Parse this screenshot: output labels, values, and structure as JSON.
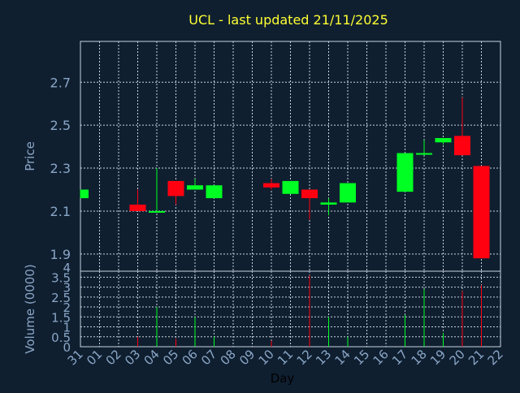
{
  "title": "UCL - last updated 21/11/2025",
  "colors": {
    "background": "#0f1f30",
    "title": "#ffff33",
    "axis_text": "#8aa6c6",
    "grid": "#c9d3de",
    "up": "#00ff22",
    "down": "#ff0011",
    "frame": "#c9d3de"
  },
  "chart_data": [
    {
      "type": "candlestick",
      "ylabel": "Price",
      "ylim": [
        1.82,
        2.89
      ],
      "yticks": [
        "1.9",
        "2.1",
        "2.3",
        "2.5",
        "2.7"
      ],
      "ytick_values": [
        1.9,
        2.1,
        2.3,
        2.5,
        2.7
      ],
      "grid": true,
      "x": [
        "31",
        "01",
        "02",
        "03",
        "04",
        "05",
        "06",
        "07",
        "08",
        "09",
        "10",
        "11",
        "12",
        "13",
        "14",
        "15",
        "16",
        "17",
        "18",
        "19",
        "20",
        "21",
        "22"
      ],
      "candles": [
        {
          "x": "31",
          "open": 2.16,
          "close": 2.2,
          "high": 2.2,
          "low": 2.16
        },
        {
          "x": "03",
          "open": 2.13,
          "close": 2.1,
          "high": 2.2,
          "low": 2.1
        },
        {
          "x": "04",
          "open": 2.1,
          "close": 2.1,
          "high": 2.3,
          "low": 2.1
        },
        {
          "x": "05",
          "open": 2.24,
          "close": 2.17,
          "high": 2.24,
          "low": 2.13
        },
        {
          "x": "06",
          "open": 2.2,
          "close": 2.22,
          "high": 2.25,
          "low": 2.2
        },
        {
          "x": "07",
          "open": 2.16,
          "close": 2.22,
          "high": 2.22,
          "low": 2.16
        },
        {
          "x": "10",
          "open": 2.23,
          "close": 2.21,
          "high": 2.25,
          "low": 2.2
        },
        {
          "x": "11",
          "open": 2.18,
          "close": 2.24,
          "high": 2.24,
          "low": 2.18
        },
        {
          "x": "12",
          "open": 2.2,
          "close": 2.16,
          "high": 2.2,
          "low": 2.06
        },
        {
          "x": "13",
          "open": 2.13,
          "close": 2.14,
          "high": 2.16,
          "low": 2.08
        },
        {
          "x": "14",
          "open": 2.14,
          "close": 2.23,
          "high": 2.23,
          "low": 2.14
        },
        {
          "x": "17",
          "open": 2.19,
          "close": 2.37,
          "high": 2.37,
          "low": 2.19
        },
        {
          "x": "18",
          "open": 2.37,
          "close": 2.37,
          "high": 2.43,
          "low": 2.36
        },
        {
          "x": "19",
          "open": 2.42,
          "close": 2.44,
          "high": 2.44,
          "low": 2.41
        },
        {
          "x": "20",
          "open": 2.45,
          "close": 2.36,
          "high": 2.63,
          "low": 2.36
        },
        {
          "x": "21",
          "open": 2.31,
          "close": 1.88,
          "high": 2.31,
          "low": 1.88
        }
      ]
    },
    {
      "type": "bar",
      "ylabel": "Volume (0000)",
      "xlabel": "Day",
      "ylim": [
        0,
        3.8
      ],
      "yticks": [
        "0",
        "0.5",
        "1",
        "1.5",
        "2",
        "2.5",
        "3",
        "3.5",
        "4"
      ],
      "ytick_values": [
        0,
        0.5,
        1,
        1.5,
        2,
        2.5,
        3,
        3.5,
        4
      ],
      "grid": true,
      "x": [
        "31",
        "01",
        "02",
        "03",
        "04",
        "05",
        "06",
        "07",
        "08",
        "09",
        "10",
        "11",
        "12",
        "13",
        "14",
        "15",
        "16",
        "17",
        "18",
        "19",
        "20",
        "21",
        "22"
      ],
      "bars": [
        {
          "x": "03",
          "value": 0.5,
          "direction": "down"
        },
        {
          "x": "04",
          "value": 2.0,
          "direction": "up"
        },
        {
          "x": "05",
          "value": 0.4,
          "direction": "down"
        },
        {
          "x": "06",
          "value": 1.5,
          "direction": "up"
        },
        {
          "x": "07",
          "value": 0.5,
          "direction": "up"
        },
        {
          "x": "10",
          "value": 0.3,
          "direction": "down"
        },
        {
          "x": "12",
          "value": 3.6,
          "direction": "down"
        },
        {
          "x": "13",
          "value": 1.5,
          "direction": "up"
        },
        {
          "x": "14",
          "value": 0.5,
          "direction": "up"
        },
        {
          "x": "17",
          "value": 1.6,
          "direction": "up"
        },
        {
          "x": "18",
          "value": 2.9,
          "direction": "up"
        },
        {
          "x": "19",
          "value": 0.7,
          "direction": "up"
        },
        {
          "x": "20",
          "value": 2.8,
          "direction": "down"
        },
        {
          "x": "21",
          "value": 3.1,
          "direction": "down"
        }
      ]
    }
  ]
}
